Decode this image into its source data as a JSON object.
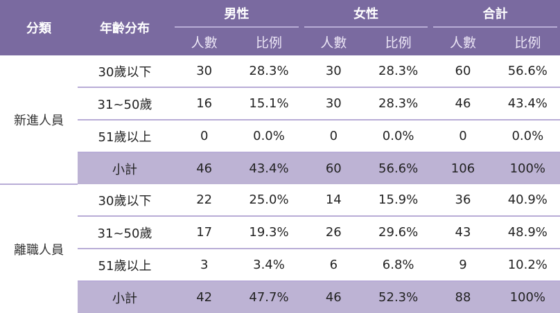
{
  "header": {
    "category": "分類",
    "age": "年齡分布",
    "groups": [
      "男性",
      "女性",
      "合計"
    ],
    "sub": [
      "人數",
      "比例",
      "人數",
      "比例",
      "人數",
      "比例"
    ]
  },
  "colors": {
    "header_bg": "#7a6aa0",
    "subtotal_bg": "#bdb3d4",
    "divider": "#b8acd6"
  },
  "sections": [
    {
      "category": "新進人員",
      "rows": [
        {
          "age": "30歲以下",
          "values": [
            "30",
            "28.3%",
            "30",
            "28.3%",
            "60",
            "56.6%"
          ]
        },
        {
          "age": "31~50歲",
          "values": [
            "16",
            "15.1%",
            "30",
            "28.3%",
            "46",
            "43.4%"
          ]
        },
        {
          "age": "51歲以上",
          "values": [
            "0",
            "0.0%",
            "0",
            "0.0%",
            "0",
            "0.0%"
          ]
        },
        {
          "age": "小計",
          "subtotal": true,
          "values": [
            "46",
            "43.4%",
            "60",
            "56.6%",
            "106",
            "100%"
          ]
        }
      ]
    },
    {
      "category": "離職人員",
      "rows": [
        {
          "age": "30歲以下",
          "values": [
            "22",
            "25.0%",
            "14",
            "15.9%",
            "36",
            "40.9%"
          ]
        },
        {
          "age": "31~50歲",
          "values": [
            "17",
            "19.3%",
            "26",
            "29.6%",
            "43",
            "48.9%"
          ]
        },
        {
          "age": "51歲以上",
          "values": [
            "3",
            "3.4%",
            "6",
            "6.8%",
            "9",
            "10.2%"
          ]
        },
        {
          "age": "小計",
          "subtotal": true,
          "values": [
            "42",
            "47.7%",
            "46",
            "52.3%",
            "88",
            "100%"
          ]
        }
      ]
    }
  ]
}
